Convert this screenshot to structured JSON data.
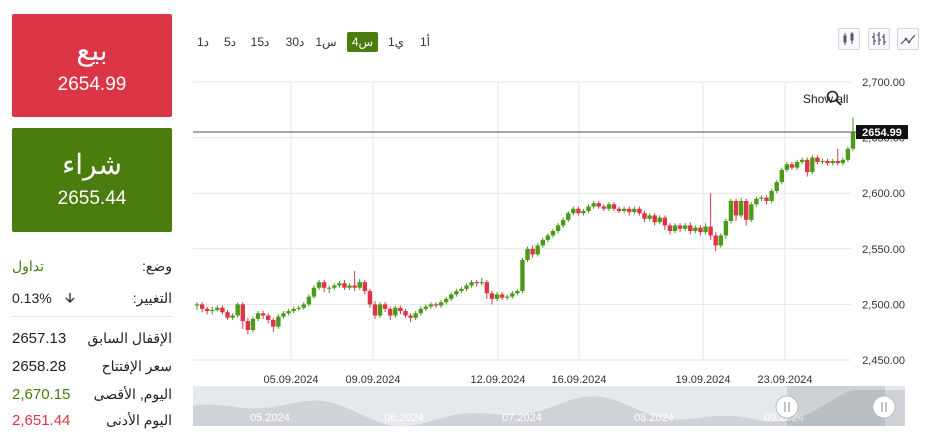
{
  "trade": {
    "sell_label": "بيع",
    "sell_price": "2654.99",
    "buy_label": "شراء",
    "buy_price": "2655.44",
    "sell_color": "#dc3545",
    "buy_color": "#4b7d0e"
  },
  "info": {
    "mode_label": "وضع:",
    "mode_value": "تداول",
    "change_label": "التغيير:",
    "change_value": "0.13%",
    "change_icon": "arrow-down-icon",
    "prev_close_label": "الإقفال السابق",
    "prev_close_value": "2657.13",
    "open_label": "سعر الإفتتاح",
    "open_value": "2658.28",
    "high_label": "اليوم, الأقصى",
    "high_value": "2,670.15",
    "low_label": "اليوم الأدنى",
    "low_value": "2,651.44",
    "high_color": "#4b7d0e",
    "low_color": "#dc3545"
  },
  "timeframes": [
    "1أ",
    "1ي",
    "4س",
    "1س",
    "30د",
    "15د",
    "5د",
    "1د"
  ],
  "active_timeframe": "4س",
  "toolbar": {
    "icons": [
      "candlestick-chart-icon",
      "bar-chart-icon",
      "drawing-tools-icon"
    ]
  },
  "chart_ui": {
    "show_all_label": "Show all",
    "zoom_icon": "magnifier-icon"
  },
  "chart_data": {
    "type": "candlestick",
    "title": "",
    "xlabel": "",
    "ylabel": "",
    "ylim": [
      2450,
      2700
    ],
    "y_ticks": [
      "2,450.00",
      "2,500.00",
      "2,550.00",
      "2,600.00",
      "2,650.00",
      "2,700.00"
    ],
    "x_ticks": [
      "05.09.2024",
      "09.09.2024",
      "12.09.2024",
      "16.09.2024",
      "19.09.2024",
      "23.09.2024"
    ],
    "current_price": "2654.99",
    "up_color": "#4b9a1a",
    "down_color": "#dc3545",
    "grid": true,
    "navigator": {
      "labels": [
        "05.2024",
        "06.2024",
        "07.2024",
        "08.2024",
        "09.2024"
      ],
      "handle_icon": "range-handle-icon"
    },
    "candles": [
      [
        2499,
        2500,
        2495,
        2502
      ],
      [
        2500,
        2496,
        2493,
        2502
      ],
      [
        2496,
        2494,
        2491,
        2498
      ],
      [
        2494,
        2495,
        2491,
        2498
      ],
      [
        2495,
        2497,
        2494,
        2499
      ],
      [
        2497,
        2493,
        2491,
        2499
      ],
      [
        2493,
        2488,
        2486,
        2495
      ],
      [
        2488,
        2490,
        2486,
        2492
      ],
      [
        2490,
        2500,
        2488,
        2502
      ],
      [
        2500,
        2485,
        2478,
        2502
      ],
      [
        2485,
        2477,
        2473,
        2488
      ],
      [
        2477,
        2487,
        2475,
        2489
      ],
      [
        2487,
        2492,
        2485,
        2494
      ],
      [
        2492,
        2490,
        2487,
        2494
      ],
      [
        2490,
        2486,
        2483,
        2492
      ],
      [
        2486,
        2480,
        2475,
        2488
      ],
      [
        2480,
        2489,
        2478,
        2491
      ],
      [
        2489,
        2492,
        2487,
        2494
      ],
      [
        2492,
        2494,
        2490,
        2496
      ],
      [
        2494,
        2496,
        2492,
        2498
      ],
      [
        2496,
        2497,
        2494,
        2499
      ],
      [
        2497,
        2500,
        2495,
        2502
      ],
      [
        2500,
        2507,
        2498,
        2509
      ],
      [
        2507,
        2515,
        2505,
        2517
      ],
      [
        2515,
        2520,
        2513,
        2522
      ],
      [
        2520,
        2515,
        2511,
        2522
      ],
      [
        2515,
        2515,
        2510,
        2517
      ],
      [
        2515,
        2517,
        2513,
        2519
      ],
      [
        2517,
        2519,
        2515,
        2521
      ],
      [
        2519,
        2515,
        2513,
        2522
      ],
      [
        2515,
        2517,
        2513,
        2519
      ],
      [
        2517,
        2515,
        2512,
        2530
      ],
      [
        2515,
        2520,
        2513,
        2523
      ],
      [
        2520,
        2512,
        2509,
        2522
      ],
      [
        2512,
        2500,
        2497,
        2514
      ],
      [
        2500,
        2490,
        2487,
        2503
      ],
      [
        2490,
        2500,
        2488,
        2502
      ],
      [
        2500,
        2496,
        2493,
        2502
      ],
      [
        2496,
        2490,
        2486,
        2498
      ],
      [
        2490,
        2497,
        2488,
        2499
      ],
      [
        2497,
        2494,
        2491,
        2499
      ],
      [
        2494,
        2490,
        2488,
        2496
      ],
      [
        2490,
        2488,
        2484,
        2492
      ],
      [
        2488,
        2492,
        2486,
        2494
      ],
      [
        2492,
        2496,
        2490,
        2498
      ],
      [
        2496,
        2498,
        2494,
        2500
      ],
      [
        2498,
        2500,
        2496,
        2502
      ],
      [
        2500,
        2499,
        2497,
        2502
      ],
      [
        2499,
        2502,
        2497,
        2504
      ],
      [
        2502,
        2505,
        2500,
        2507
      ],
      [
        2505,
        2509,
        2503,
        2511
      ],
      [
        2509,
        2512,
        2507,
        2514
      ],
      [
        2512,
        2514,
        2510,
        2516
      ],
      [
        2514,
        2517,
        2512,
        2519
      ],
      [
        2517,
        2520,
        2515,
        2522
      ],
      [
        2520,
        2519,
        2516,
        2522
      ],
      [
        2519,
        2520,
        2517,
        2524
      ],
      [
        2520,
        2510,
        2505,
        2522
      ],
      [
        2510,
        2505,
        2500,
        2512
      ],
      [
        2505,
        2509,
        2503,
        2511
      ],
      [
        2509,
        2506,
        2504,
        2511
      ],
      [
        2506,
        2507,
        2504,
        2509
      ],
      [
        2507,
        2510,
        2505,
        2512
      ],
      [
        2510,
        2512,
        2508,
        2514
      ],
      [
        2512,
        2540,
        2510,
        2542
      ],
      [
        2540,
        2550,
        2538,
        2552
      ],
      [
        2550,
        2545,
        2542,
        2553
      ],
      [
        2545,
        2553,
        2543,
        2555
      ],
      [
        2553,
        2558,
        2551,
        2560
      ],
      [
        2558,
        2562,
        2556,
        2564
      ],
      [
        2562,
        2566,
        2560,
        2568
      ],
      [
        2566,
        2571,
        2564,
        2573
      ],
      [
        2571,
        2576,
        2569,
        2578
      ],
      [
        2576,
        2582,
        2574,
        2584
      ],
      [
        2582,
        2586,
        2580,
        2588
      ],
      [
        2586,
        2582,
        2580,
        2588
      ],
      [
        2582,
        2584,
        2580,
        2586
      ],
      [
        2584,
        2588,
        2582,
        2590
      ],
      [
        2588,
        2591,
        2586,
        2593
      ],
      [
        2591,
        2588,
        2586,
        2593
      ],
      [
        2588,
        2586,
        2584,
        2590
      ],
      [
        2586,
        2590,
        2584,
        2592
      ],
      [
        2590,
        2586,
        2584,
        2592
      ],
      [
        2586,
        2584,
        2582,
        2588
      ],
      [
        2584,
        2586,
        2582,
        2588
      ],
      [
        2586,
        2583,
        2580,
        2588
      ],
      [
        2583,
        2586,
        2581,
        2588
      ],
      [
        2586,
        2582,
        2580,
        2588
      ],
      [
        2582,
        2577,
        2574,
        2584
      ],
      [
        2577,
        2580,
        2575,
        2582
      ],
      [
        2580,
        2574,
        2571,
        2582
      ],
      [
        2574,
        2578,
        2572,
        2580
      ],
      [
        2578,
        2571,
        2567,
        2580
      ],
      [
        2571,
        2566,
        2563,
        2573
      ],
      [
        2566,
        2571,
        2564,
        2573
      ],
      [
        2571,
        2568,
        2565,
        2573
      ],
      [
        2568,
        2571,
        2566,
        2573
      ],
      [
        2571,
        2566,
        2563,
        2574
      ],
      [
        2566,
        2569,
        2564,
        2571
      ],
      [
        2569,
        2565,
        2562,
        2571
      ],
      [
        2565,
        2570,
        2563,
        2573
      ],
      [
        2570,
        2562,
        2558,
        2600
      ],
      [
        2562,
        2553,
        2548,
        2565
      ],
      [
        2553,
        2562,
        2551,
        2564
      ],
      [
        2562,
        2575,
        2559,
        2577
      ],
      [
        2575,
        2593,
        2573,
        2595
      ],
      [
        2593,
        2580,
        2575,
        2595
      ],
      [
        2580,
        2593,
        2578,
        2596
      ],
      [
        2593,
        2576,
        2571,
        2595
      ],
      [
        2576,
        2590,
        2574,
        2592
      ],
      [
        2590,
        2595,
        2588,
        2597
      ],
      [
        2595,
        2596,
        2593,
        2598
      ],
      [
        2596,
        2593,
        2590,
        2598
      ],
      [
        2593,
        2602,
        2591,
        2604
      ],
      [
        2602,
        2610,
        2600,
        2612
      ],
      [
        2610,
        2621,
        2608,
        2623
      ],
      [
        2621,
        2626,
        2619,
        2628
      ],
      [
        2626,
        2623,
        2621,
        2628
      ],
      [
        2623,
        2628,
        2621,
        2630
      ],
      [
        2628,
        2630,
        2626,
        2632
      ],
      [
        2630,
        2619,
        2615,
        2632
      ],
      [
        2619,
        2632,
        2617,
        2634
      ],
      [
        2632,
        2628,
        2626,
        2634
      ],
      [
        2628,
        2629,
        2626,
        2631
      ],
      [
        2629,
        2627,
        2625,
        2631
      ],
      [
        2627,
        2629,
        2625,
        2631
      ],
      [
        2629,
        2627,
        2625,
        2640
      ],
      [
        2627,
        2630,
        2625,
        2632
      ],
      [
        2630,
        2640,
        2628,
        2642
      ],
      [
        2640,
        2654.99,
        2638,
        2668
      ]
    ]
  }
}
